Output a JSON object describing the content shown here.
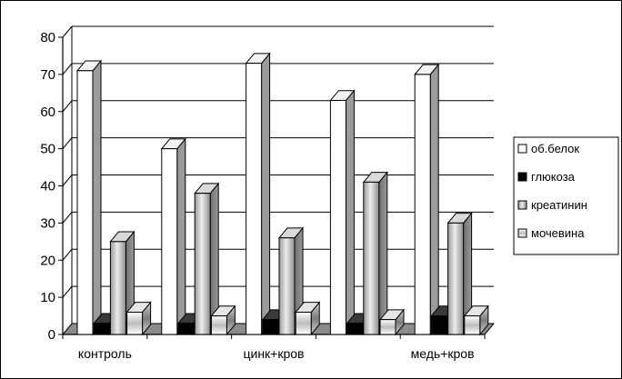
{
  "chart_data": {
    "type": "bar",
    "title": "",
    "xlabel": "",
    "ylabel": "",
    "ylim": [
      0,
      80
    ],
    "yticks": [
      0,
      10,
      20,
      30,
      40,
      50,
      60,
      70,
      80
    ],
    "grid": "horizontal",
    "legend_position": "right",
    "categories": [
      "контроль",
      "",
      "цинк+кров",
      "",
      "медь+кров"
    ],
    "series": [
      {
        "name": "об.белок",
        "values": [
          71,
          50,
          73,
          63,
          70
        ],
        "color": "#ffffff",
        "pattern": "plain"
      },
      {
        "name": "глюкоза",
        "values": [
          3,
          3,
          4,
          3,
          5
        ],
        "color": "#000000",
        "pattern": "solid"
      },
      {
        "name": "креатинин",
        "values": [
          25,
          38,
          26,
          41,
          30
        ],
        "color": "#bdbdbd",
        "pattern": "vertical-gradient"
      },
      {
        "name": "мочевина",
        "values": [
          6,
          5,
          6,
          4,
          5
        ],
        "color": "#cfcfcf",
        "pattern": "horizontal-gradient"
      }
    ]
  }
}
